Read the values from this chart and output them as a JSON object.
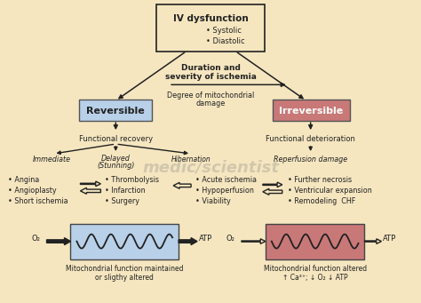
{
  "bg_color": "#F5E6C0",
  "title_bold": "IV dysfunction",
  "title_bullets": [
    "Systolic",
    "Diastolic"
  ],
  "reversible_color": "#B8D0E8",
  "irreversible_color": "#C97878",
  "mito_left_color": "#B8D0E8",
  "mito_right_color": "#C97878",
  "text_color": "#222222",
  "watermark": "medic/scientist",
  "duration_text1": "Duration and",
  "duration_text2": "severity of ischemia",
  "degree_text1": "Degree of mitochondrial",
  "degree_text2": "damage",
  "reversible_label": "Reversible",
  "irreversible_label": "Irreversible",
  "func_recovery": "Functional recovery",
  "func_deterioration": "Functional deterioration",
  "immediate": "Immediate",
  "delayed": "Delayed",
  "delayed2": "(Stunning)",
  "hibernation": "Hibernation",
  "reperfusion": "Reperfusion damage",
  "left_bullets": [
    "• Angina",
    "• Angioplasty",
    "• Short ischemia"
  ],
  "mid_left_bullets": [
    "• Thrombolysis",
    "• Infarction",
    "• Surgery"
  ],
  "mid_right_bullets": [
    "• Acute ischemia",
    "• Hypoperfusion",
    "• Viability"
  ],
  "right_bullets": [
    "• Further necrosis",
    "• Ventricular expansion",
    "• Remodeling  CHF"
  ],
  "mito_left_text1": "Mitochondrial function maintained",
  "mito_left_text2": "or sligthy altered",
  "mito_right_text1": "Mitochondrial function altered",
  "mito_right_text2": "↑ Ca²⁺; ↓ O₂ ↓ ATP",
  "o2": "O₂",
  "atp": "ATP"
}
